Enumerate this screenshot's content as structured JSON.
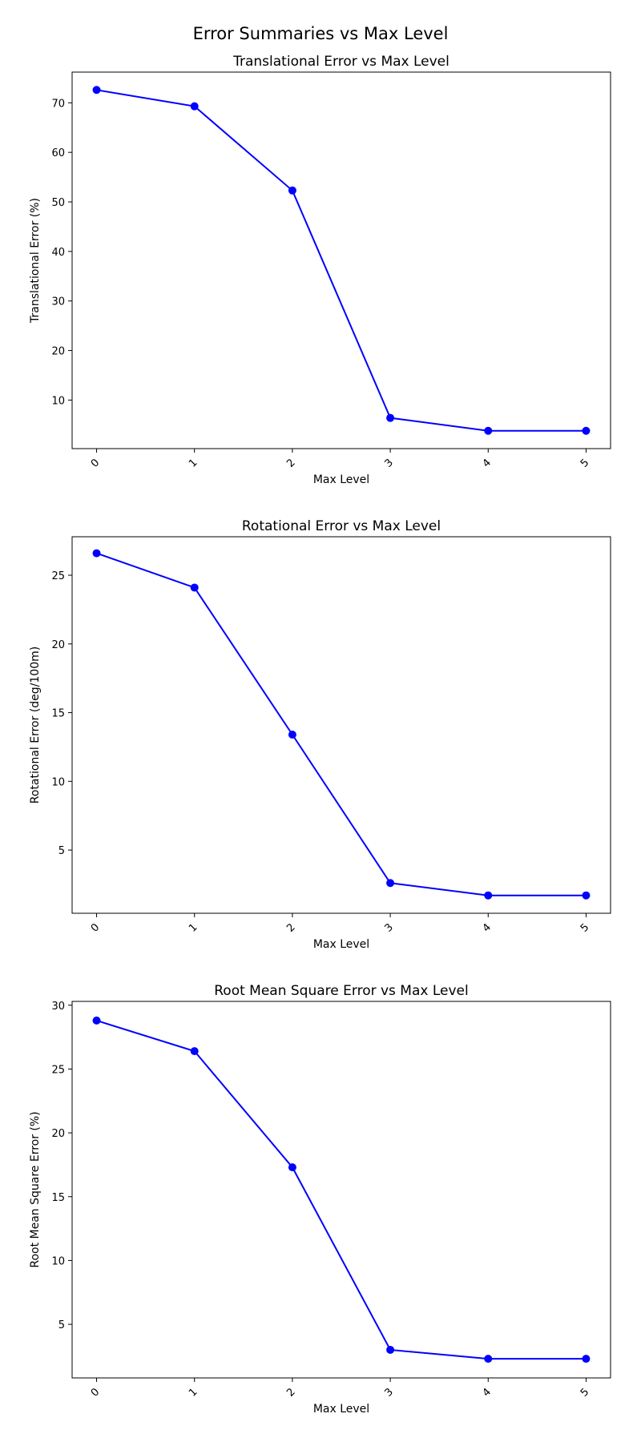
{
  "figure": {
    "suptitle": "Error Summaries vs Max Level"
  },
  "chart_data": [
    {
      "type": "line",
      "title": "Translational Error vs Max Level",
      "xlabel": "Max Level",
      "ylabel": "Translational Error (%)",
      "x": [
        0,
        1,
        2,
        3,
        4,
        5
      ],
      "x_tick_labels": [
        "0",
        "1",
        "2",
        "3",
        "4",
        "5"
      ],
      "xlim": [
        -0.25,
        5.25
      ],
      "ylim": [
        0.2,
        76.2
      ],
      "y_ticks": [
        10,
        20,
        30,
        40,
        50,
        60,
        70
      ],
      "series": [
        {
          "values": [
            72.6,
            69.3,
            52.3,
            6.4,
            3.8,
            3.8
          ],
          "color": "#0000ff",
          "marker": "circle"
        }
      ],
      "grid": false
    },
    {
      "type": "line",
      "title": "Rotational Error vs Max Level",
      "xlabel": "Max Level",
      "ylabel": "Rotational Error (deg/100m)",
      "x": [
        0,
        1,
        2,
        3,
        4,
        5
      ],
      "x_tick_labels": [
        "0",
        "1",
        "2",
        "3",
        "4",
        "5"
      ],
      "xlim": [
        -0.25,
        5.25
      ],
      "ylim": [
        0.4,
        27.8
      ],
      "y_ticks": [
        5,
        10,
        15,
        20,
        25
      ],
      "series": [
        {
          "values": [
            26.6,
            24.1,
            13.4,
            2.6,
            1.7,
            1.7
          ],
          "color": "#0000ff",
          "marker": "circle"
        }
      ],
      "grid": false
    },
    {
      "type": "line",
      "title": "Root Mean Square Error vs Max Level",
      "xlabel": "Max Level",
      "ylabel": "Root Mean Square Error (%)",
      "x": [
        0,
        1,
        2,
        3,
        4,
        5
      ],
      "x_tick_labels": [
        "0",
        "1",
        "2",
        "3",
        "4",
        "5"
      ],
      "xlim": [
        -0.25,
        5.25
      ],
      "ylim": [
        0.8,
        30.3
      ],
      "y_ticks": [
        5,
        10,
        15,
        20,
        25,
        30
      ],
      "series": [
        {
          "values": [
            28.8,
            26.4,
            17.3,
            3.0,
            2.3,
            2.3
          ],
          "color": "#0000ff",
          "marker": "circle"
        }
      ],
      "grid": false
    }
  ]
}
